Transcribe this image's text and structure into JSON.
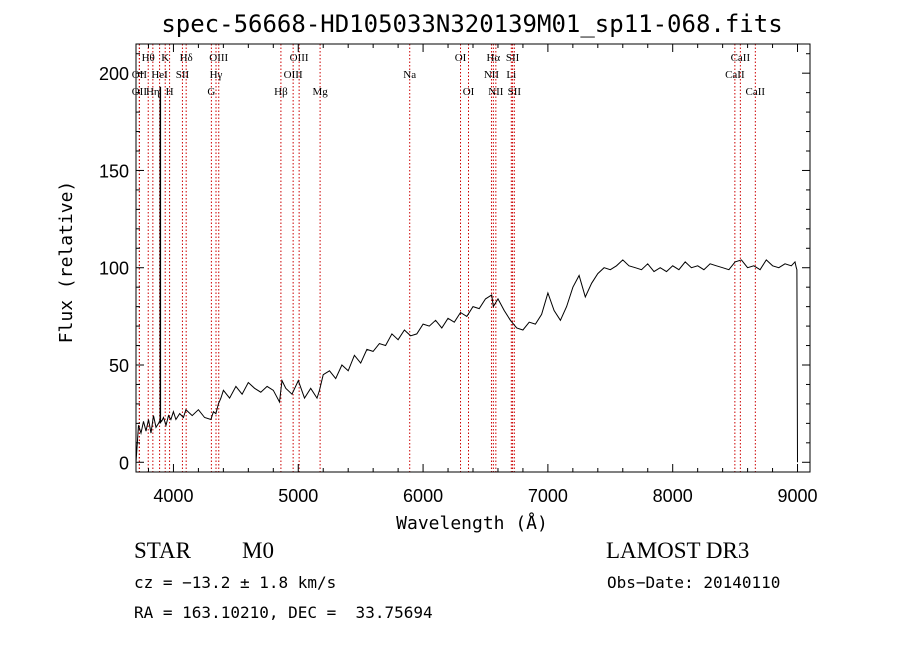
{
  "chart_data": {
    "type": "line",
    "title": "spec-56668-HD105033N320139M01_sp11-068.fits",
    "xlabel": "Wavelength (Å)",
    "ylabel": "Flux (relative)",
    "xlim": [
      3700,
      9100
    ],
    "ylim": [
      -5,
      215
    ],
    "xticks": [
      4000,
      5000,
      6000,
      7000,
      8000,
      9000
    ],
    "xtick_labels": [
      "4000",
      "5000",
      "6000",
      "7000",
      "8000",
      "9000"
    ],
    "yticks": [
      0,
      50,
      100,
      150,
      200
    ],
    "ytick_labels": [
      "0",
      "50",
      "100",
      "150",
      "200"
    ],
    "spectrum": {
      "x": [
        3700,
        3720,
        3740,
        3760,
        3780,
        3800,
        3820,
        3840,
        3860,
        3880,
        3895,
        3905,
        3920,
        3940,
        3960,
        3980,
        4000,
        4020,
        4050,
        4080,
        4100,
        4150,
        4200,
        4250,
        4300,
        4320,
        4340,
        4360,
        4380,
        4400,
        4450,
        4500,
        4550,
        4600,
        4650,
        4700,
        4750,
        4800,
        4850,
        4870,
        4900,
        4950,
        5000,
        5050,
        5100,
        5150,
        5170,
        5200,
        5250,
        5300,
        5350,
        5400,
        5450,
        5500,
        5550,
        5600,
        5650,
        5700,
        5750,
        5800,
        5850,
        5900,
        5950,
        6000,
        6050,
        6100,
        6150,
        6200,
        6250,
        6300,
        6350,
        6400,
        6450,
        6500,
        6550,
        6563,
        6600,
        6650,
        6700,
        6750,
        6800,
        6850,
        6900,
        6950,
        7000,
        7050,
        7100,
        7150,
        7200,
        7250,
        7300,
        7350,
        7400,
        7450,
        7500,
        7550,
        7600,
        7650,
        7700,
        7750,
        7800,
        7850,
        7900,
        7950,
        8000,
        8050,
        8100,
        8150,
        8200,
        8250,
        8300,
        8350,
        8400,
        8450,
        8500,
        8550,
        8600,
        8650,
        8700,
        8750,
        8800,
        8850,
        8900,
        8950,
        8980,
        8990,
        8995,
        9000
      ],
      "y": [
        0,
        19,
        15,
        21,
        16,
        22,
        15,
        24,
        18,
        20,
        22,
        21,
        23,
        19,
        24,
        22,
        26,
        22,
        25,
        23,
        27,
        24,
        27,
        23,
        22,
        26,
        25,
        30,
        33,
        37,
        33,
        39,
        35,
        41,
        38,
        36,
        39,
        37,
        31,
        42,
        38,
        35,
        42,
        33,
        38,
        33,
        37,
        45,
        47,
        43,
        50,
        47,
        55,
        51,
        58,
        57,
        61,
        60,
        66,
        63,
        68,
        65,
        66,
        71,
        70,
        73,
        69,
        74,
        72,
        77,
        75,
        80,
        79,
        84,
        86,
        80,
        84,
        78,
        73,
        69,
        68,
        72,
        71,
        76,
        87,
        78,
        73,
        80,
        90,
        96,
        85,
        92,
        97,
        100,
        99,
        101,
        104,
        101,
        100,
        99,
        102,
        98,
        100,
        98,
        101,
        99,
        103,
        100,
        101,
        99,
        102,
        101,
        100,
        99,
        103,
        104,
        100,
        101,
        99,
        104,
        101,
        100,
        102,
        101,
        103,
        100,
        99,
        0
      ]
    },
    "annotation": {
      "x": 3895,
      "y": 193
    },
    "lines": [
      {
        "label": "OII",
        "wavelength": 3727,
        "row": 3
      },
      {
        "label": "Hθ",
        "wavelength": 3798,
        "row": 1
      },
      {
        "label": "OII",
        "wavelength": 3727,
        "row": 2
      },
      {
        "label": "Hη",
        "wavelength": 3835,
        "row": 3
      },
      {
        "label": "HeI",
        "wavelength": 3889,
        "row": 2
      },
      {
        "label": "K",
        "wavelength": 3934,
        "row": 1
      },
      {
        "label": "H",
        "wavelength": 3969,
        "row": 3
      },
      {
        "label": "SII",
        "wavelength": 4072,
        "row": 2
      },
      {
        "label": "Hδ",
        "wavelength": 4102,
        "row": 1
      },
      {
        "label": "OIII",
        "wavelength": 4363,
        "row": 1
      },
      {
        "label": "Hγ",
        "wavelength": 4341,
        "row": 2
      },
      {
        "label": "G",
        "wavelength": 4304,
        "row": 3
      },
      {
        "label": "Hβ",
        "wavelength": 4861,
        "row": 3
      },
      {
        "label": "OIII",
        "wavelength": 5007,
        "row": 1
      },
      {
        "label": "OIII",
        "wavelength": 4959,
        "row": 2
      },
      {
        "label": "Mg",
        "wavelength": 5175,
        "row": 3
      },
      {
        "label": "Na",
        "wavelength": 5893,
        "row": 2
      },
      {
        "label": "OI",
        "wavelength": 6300,
        "row": 1
      },
      {
        "label": "OI",
        "wavelength": 6364,
        "row": 3
      },
      {
        "label": "Hα",
        "wavelength": 6563,
        "row": 1
      },
      {
        "label": "NII",
        "wavelength": 6548,
        "row": 2
      },
      {
        "label": "NII",
        "wavelength": 6583,
        "row": 3
      },
      {
        "label": "SII",
        "wavelength": 6717,
        "row": 1
      },
      {
        "label": "Li",
        "wavelength": 6707,
        "row": 2
      },
      {
        "label": "SII",
        "wavelength": 6731,
        "row": 3
      },
      {
        "label": "CaII",
        "wavelength": 8542,
        "row": 1
      },
      {
        "label": "CaII",
        "wavelength": 8498,
        "row": 2
      },
      {
        "label": "CaII",
        "wavelength": 8662,
        "row": 3
      }
    ]
  },
  "info": {
    "class": "STAR",
    "subclass": "M0",
    "survey": "LAMOST DR3",
    "redshift": "cz = −13.2 ± 1.8 km/s",
    "obs_date": "Obs−Date: 20140110",
    "coords": "RA = 163.10210, DEC =  33.75694"
  },
  "colors": {
    "spectrum": "#000000",
    "line_markers": "#cc0000",
    "axes": "#000000"
  }
}
